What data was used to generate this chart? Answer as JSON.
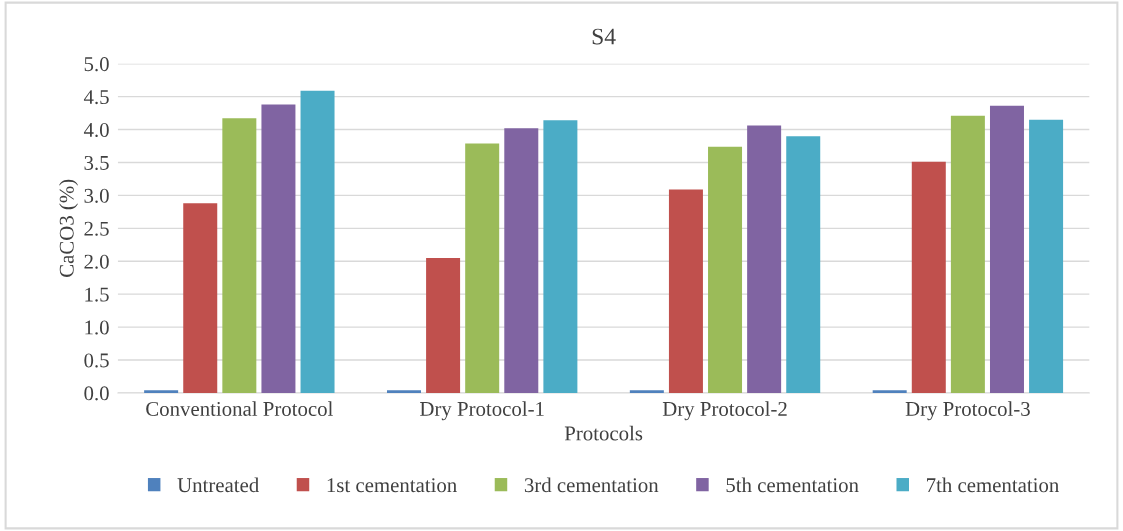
{
  "chart_data": {
    "type": "bar",
    "title": "S4",
    "xlabel": "Protocols",
    "ylabel": "CaCO3 (%)",
    "categories": [
      "Conventional Protocol",
      "Dry Protocol-1",
      "Dry Protocol-2",
      "Dry Protocol-3"
    ],
    "series": [
      {
        "name": "Untreated",
        "color": "#4f81bd",
        "values": [
          0.04,
          0.04,
          0.04,
          0.04
        ]
      },
      {
        "name": "1st cementation",
        "color": "#c0504d",
        "values": [
          2.88,
          2.05,
          3.09,
          3.51
        ]
      },
      {
        "name": "3rd cementation",
        "color": "#9bbb59",
        "values": [
          4.17,
          3.79,
          3.74,
          4.21
        ]
      },
      {
        "name": "5th cementation",
        "color": "#8064a2",
        "values": [
          4.38,
          4.02,
          4.06,
          4.36
        ]
      },
      {
        "name": "7th cementation",
        "color": "#4bacc6",
        "values": [
          4.59,
          4.14,
          3.9,
          4.15
        ]
      }
    ],
    "ylim": [
      0,
      5
    ],
    "yticks": [
      {
        "value": 0,
        "label": "0.0"
      },
      {
        "value": 0.5,
        "label": "0.5"
      },
      {
        "value": 1,
        "label": "1.0"
      },
      {
        "value": 1.5,
        "label": "1.5"
      },
      {
        "value": 2,
        "label": "2.0"
      },
      {
        "value": 2.5,
        "label": "2.5"
      },
      {
        "value": 3,
        "label": "3.0"
      },
      {
        "value": 3.5,
        "label": "3.5"
      },
      {
        "value": 4,
        "label": "4.0"
      },
      {
        "value": 4.5,
        "label": "4.5"
      },
      {
        "value": 5,
        "label": "5.0"
      }
    ],
    "grid": "y",
    "legend": "bottom"
  }
}
